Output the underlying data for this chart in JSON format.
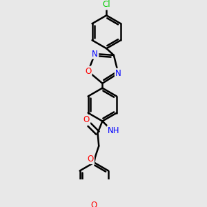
{
  "bg_color": "#e8e8e8",
  "atom_colors": {
    "N": "#0000ff",
    "O": "#ff0000",
    "Cl": "#00cc00",
    "C": "#000000",
    "H": "#777777"
  },
  "bond_color": "#000000",
  "bond_width": 1.8,
  "font_size_atoms": 8.5
}
